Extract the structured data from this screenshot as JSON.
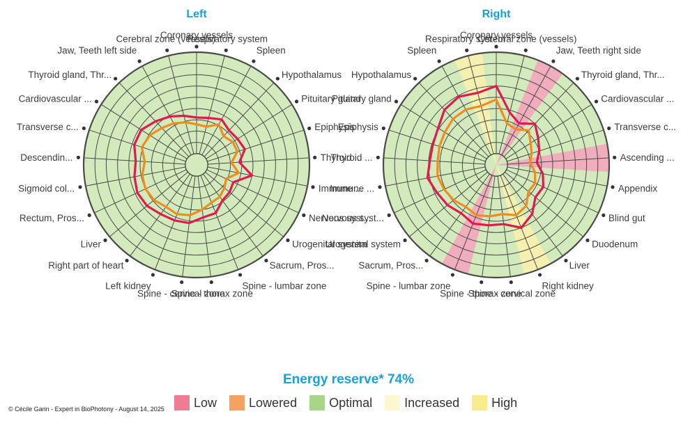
{
  "chart_data": [
    {
      "type": "radar",
      "title": "Left",
      "categories": [
        "Coronary vessels",
        "Respiratory system",
        "Spleen",
        "Hypothalamus",
        "Pituitary gland",
        "Epiphysis",
        "Thyroid ...",
        "Immune ...",
        "Nervous syst...",
        "Urogenital system",
        "Sacrum, Pros...",
        "Spine - lumbar zone",
        "Spine - thorax zone",
        "Spine - cervical zone",
        "Left kidney",
        "Right part of heart",
        "Liver",
        "Rectum, Pros...",
        "Sigmoid col...",
        "Descendin...",
        "Transverse c...",
        "Cardiovascular ...",
        "Thyroid gland, Thr...",
        "Jaw, Teeth left side",
        "Cerebral zone (vessels)"
      ],
      "r_range": [
        0,
        10
      ],
      "series": [
        {
          "name": "Red outline",
          "color": "#e2194f",
          "values": [
            4.2,
            4.3,
            4.6,
            4.2,
            4.3,
            4.5,
            3.8,
            5.0,
            3.6,
            3.8,
            3.9,
            4.6,
            4.7,
            5.2,
            5.3,
            5.4,
            5.7,
            5.8,
            5.6,
            5.4,
            5.8,
            5.8,
            5.3,
            4.9,
            4.5
          ]
        },
        {
          "name": "Orange outline",
          "color": "#f08c1e",
          "values": [
            3.6,
            3.5,
            4.1,
            3.5,
            3.8,
            3.8,
            3.1,
            3.8,
            2.9,
            3.2,
            3.5,
            3.6,
            4.0,
            4.5,
            4.7,
            4.6,
            4.9,
            5.0,
            4.9,
            4.6,
            5.1,
            4.9,
            4.5,
            4.2,
            3.9
          ]
        }
      ],
      "zones": []
    },
    {
      "type": "radar",
      "title": "Right",
      "categories": [
        "Coronary vessels",
        "Cerebral zone (vessels)",
        "Jaw, Teeth right side",
        "Thyroid gland, Thr...",
        "Cardiovascular ...",
        "Transverse c...",
        "Ascending ...",
        "Appendix",
        "Blind gut",
        "Duodenum",
        "Liver",
        "Right kidney",
        "Spine - cervical zone",
        "Spine - thorax zone",
        "Spine - lumbar zone",
        "Sacrum, Pros...",
        "Urogenital system",
        "Nervous syst...",
        "Immune ...",
        "Thyroid ...",
        "Epiphysis",
        "Pituitary gland",
        "Hypothalamus",
        "Spleen",
        "Respiratory system"
      ],
      "r_range": [
        0,
        10
      ],
      "series": [
        {
          "name": "Red outline",
          "color": "#e2194f",
          "values": [
            7.0,
            4.8,
            4.2,
            5.0,
            4.4,
            4.0,
            3.6,
            4.2,
            4.6,
            4.5,
            5.4,
            6.0,
            5.3,
            5.4,
            5.6,
            5.3,
            5.6,
            5.8,
            6.2,
            5.9,
            5.9,
            6.1,
            6.7,
            6.9,
            6.6
          ]
        },
        {
          "name": "Orange outline",
          "color": "#f08c1e",
          "values": [
            5.8,
            3.8,
            3.6,
            4.2,
            3.6,
            3.3,
            3.0,
            3.5,
            3.8,
            3.7,
            4.5,
            4.8,
            4.4,
            4.6,
            4.8,
            4.6,
            4.9,
            5.1,
            5.3,
            5.2,
            5.3,
            5.4,
            5.6,
            5.6,
            5.4
          ]
        }
      ],
      "zones": [
        {
          "category_index": 2,
          "color": "#f3a6bb"
        },
        {
          "category_index": 6,
          "color": "#f3a6bb"
        },
        {
          "category_index": 11,
          "color": "#f9f1ae"
        },
        {
          "category_index": 14,
          "color": "#f3a6bb"
        },
        {
          "category_index": 24,
          "color": "#f9f1ae"
        }
      ]
    }
  ],
  "energy_reserve": "Energy reserve* 74%",
  "legend": [
    {
      "label": "Low",
      "color": "#ef7b95"
    },
    {
      "label": "Lowered",
      "color": "#f4a261"
    },
    {
      "label": "Optimal",
      "color": "#a9d589"
    },
    {
      "label": "Increased",
      "color": "#fbf7cf"
    },
    {
      "label": "High",
      "color": "#f8ec8e"
    }
  ],
  "credit": "© Cécile Garin - Expert in BioPhotony - August 14, 2025",
  "colors": {
    "grid_fill": "#d3eabc",
    "grid_line": "#4a4a4a",
    "title": "#1a9fdb"
  }
}
